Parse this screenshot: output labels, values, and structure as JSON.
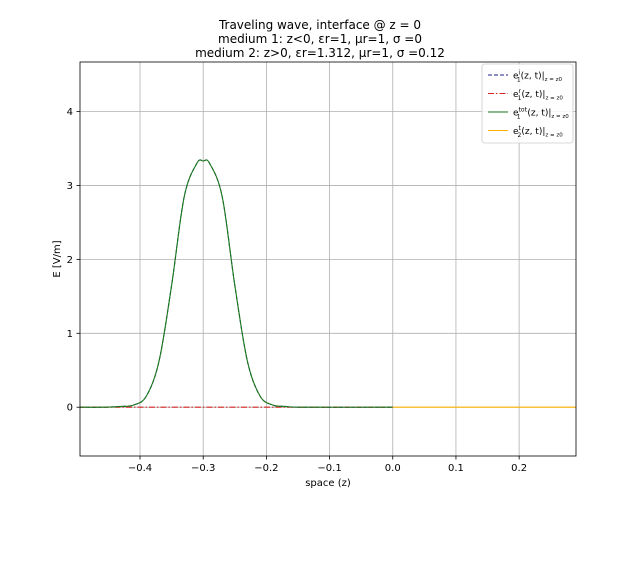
{
  "chart_data": {
    "type": "line",
    "title_lines": [
      "Traveling wave, interface @ z = 0",
      "medium 1: z<0, εr=1, μr=1, σ =0",
      "medium 2: z>0, εr=1.312, μr=1, σ =0.12"
    ],
    "xlabel": "space (z)",
    "ylabel": "E [V/m]",
    "xlim": [
      -0.495,
      0.29
    ],
    "ylim": [
      -0.66,
      4.67
    ],
    "xticks": [
      -0.4,
      -0.3,
      -0.2,
      -0.1,
      0.0,
      0.1,
      0.2
    ],
    "xtick_labels": [
      "−0.4",
      "−0.3",
      "−0.2",
      "−0.1",
      "0.0",
      "0.1",
      "0.2"
    ],
    "yticks": [
      0,
      1,
      2,
      3,
      4
    ],
    "ytick_labels": [
      "0",
      "1",
      "2",
      "3",
      "4"
    ],
    "grid": true,
    "legend_position": "top-right",
    "series": [
      {
        "name": "e1i(z,t)|z=z0",
        "legend_main": "e",
        "legend_sup": "i",
        "legend_sub": "1",
        "legend_rest": "(z, t)|",
        "legend_eval": "z = z0",
        "color": "#1f1f8f",
        "style": "dashed",
        "x": [
          -0.495,
          -0.46,
          -0.43,
          -0.41,
          -0.39,
          -0.37,
          -0.35,
          -0.33,
          -0.31,
          -0.3,
          -0.29,
          -0.27,
          -0.25,
          -0.23,
          -0.21,
          -0.19,
          -0.17,
          -0.14,
          0.0
        ],
        "y": [
          0,
          0.0,
          0.01,
          0.03,
          0.15,
          0.62,
          1.65,
          2.85,
          3.3,
          3.33,
          3.3,
          2.85,
          1.65,
          0.62,
          0.15,
          0.03,
          0.01,
          0.0,
          0.0
        ]
      },
      {
        "name": "e1r(z,t)|z=z0",
        "legend_main": "e",
        "legend_sup": "r",
        "legend_sub": "1",
        "legend_rest": "(z, t)|",
        "legend_eval": "z = z0",
        "color": "#d62728",
        "style": "dashdot",
        "x": [
          -0.495,
          0.0
        ],
        "y": [
          0,
          0
        ]
      },
      {
        "name": "e1tot(z,t)|z=z0",
        "legend_main": "e",
        "legend_sup": "tot",
        "legend_sub": "1",
        "legend_rest": "(z, t)|",
        "legend_eval": "z = z0",
        "color": "#1a7a1a",
        "style": "solid",
        "x": [
          -0.495,
          -0.46,
          -0.43,
          -0.41,
          -0.39,
          -0.37,
          -0.35,
          -0.33,
          -0.31,
          -0.3,
          -0.29,
          -0.27,
          -0.25,
          -0.23,
          -0.21,
          -0.19,
          -0.17,
          -0.14,
          0.0
        ],
        "y": [
          0,
          0.0,
          0.01,
          0.03,
          0.15,
          0.62,
          1.65,
          2.85,
          3.3,
          3.33,
          3.3,
          2.85,
          1.65,
          0.62,
          0.15,
          0.03,
          0.01,
          0.0,
          0.0
        ]
      },
      {
        "name": "e2t(z,t)|z=z0",
        "legend_main": "e",
        "legend_sup": "t",
        "legend_sub": "2",
        "legend_rest": "(z, t)|",
        "legend_eval": "z = z0",
        "color": "#ffb300",
        "style": "solid",
        "x": [
          0.0,
          0.29
        ],
        "y": [
          0,
          0
        ]
      }
    ]
  }
}
